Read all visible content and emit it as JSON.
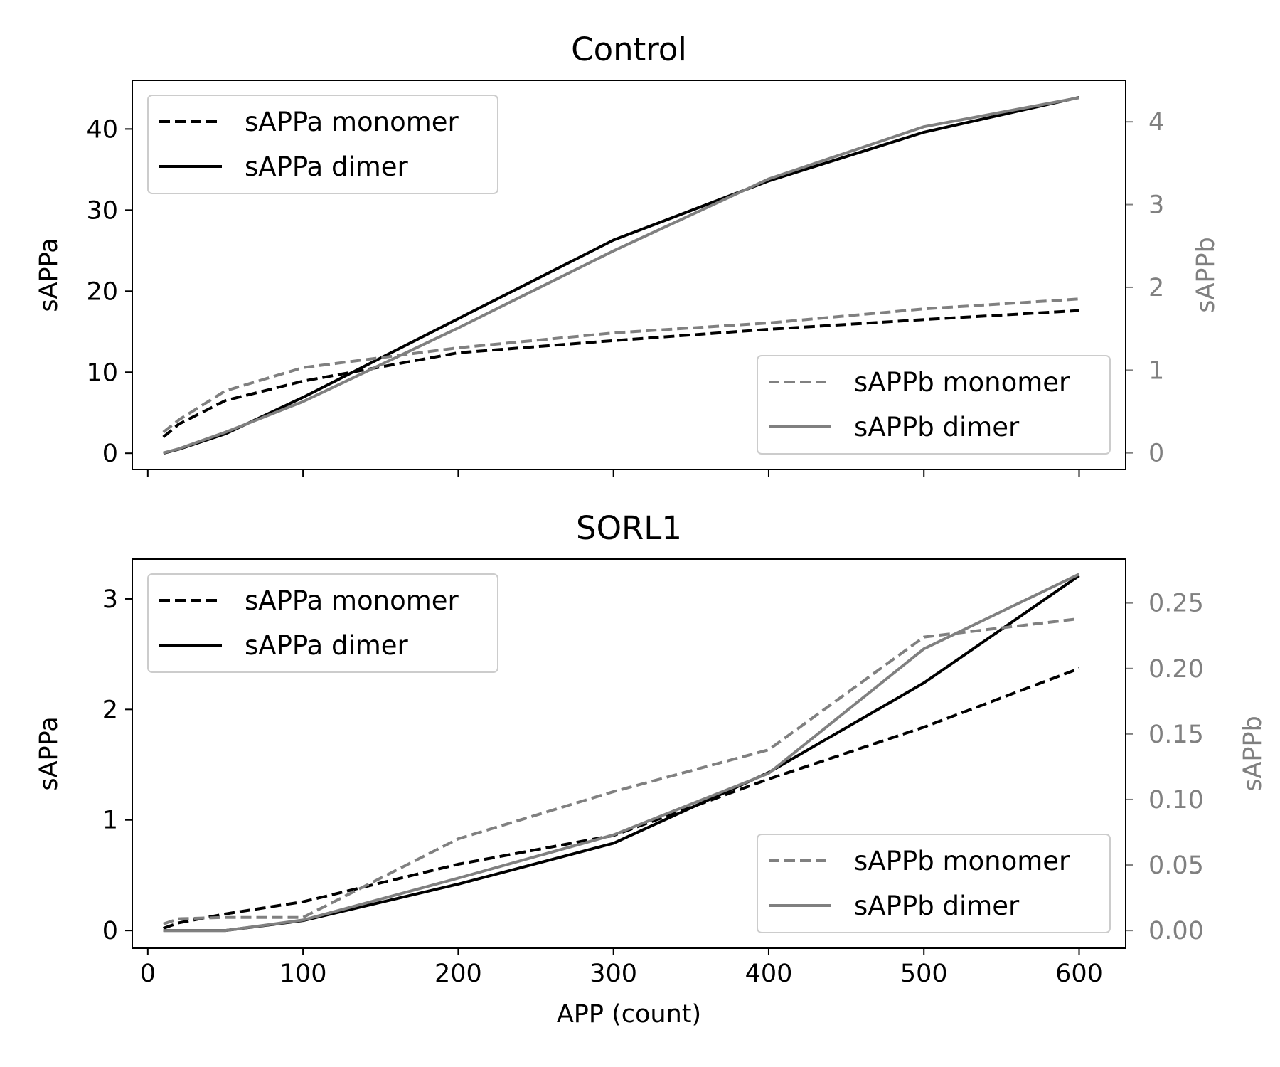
{
  "colors": {
    "black": "#000000",
    "gray": "#808080",
    "legend_border": "#cccccc"
  },
  "chart_data": [
    {
      "type": "line",
      "title": "Control",
      "xlabel": "",
      "ylabel": "sAPPa",
      "ylabel_right": "sAPPb",
      "xlim": [
        -10,
        630
      ],
      "ylim": [
        -2,
        46
      ],
      "ylim_right": [
        -0.2,
        4.5
      ],
      "xticks": [
        0,
        100,
        200,
        300,
        400,
        500,
        600
      ],
      "yticks": [
        0,
        10,
        20,
        30,
        40
      ],
      "yticks_right": [
        0,
        1,
        2,
        3,
        4
      ],
      "grid": false,
      "x": [
        10,
        20,
        50,
        100,
        200,
        300,
        400,
        500,
        600
      ],
      "series": [
        {
          "name": "sAPPa monomer",
          "axis": "left",
          "color": "#000000",
          "style": "dashed",
          "values": [
            2.0,
            3.6,
            6.5,
            8.9,
            12.4,
            13.9,
            15.3,
            16.5,
            17.6
          ]
        },
        {
          "name": "sAPPa dimer",
          "axis": "left",
          "color": "#000000",
          "style": "solid",
          "values": [
            0.0,
            0.5,
            2.4,
            6.9,
            16.6,
            26.3,
            33.6,
            39.6,
            43.9
          ]
        },
        {
          "name": "sAPPb monomer",
          "axis": "right",
          "color": "#808080",
          "style": "dashed",
          "values": [
            0.25,
            0.4,
            0.75,
            1.03,
            1.27,
            1.45,
            1.57,
            1.74,
            1.86
          ]
        },
        {
          "name": "sAPPb dimer",
          "axis": "right",
          "color": "#808080",
          "style": "solid",
          "values": [
            0.0,
            0.05,
            0.25,
            0.62,
            1.51,
            2.44,
            3.31,
            3.94,
            4.29
          ]
        }
      ],
      "legends": [
        {
          "position": "upper left",
          "entries": [
            "sAPPa monomer",
            "sAPPa dimer"
          ]
        },
        {
          "position": "lower right",
          "entries": [
            "sAPPb monomer",
            "sAPPb dimer"
          ]
        }
      ]
    },
    {
      "type": "line",
      "title": "SORL1",
      "xlabel": "APP (count)",
      "ylabel": "sAPPa",
      "ylabel_right": "sAPPb",
      "xlim": [
        -10,
        630
      ],
      "ylim": [
        -0.16,
        3.36
      ],
      "ylim_right": [
        -0.0135,
        0.2835
      ],
      "xticks": [
        0,
        100,
        200,
        300,
        400,
        500,
        600
      ],
      "yticks": [
        0,
        1,
        2,
        3
      ],
      "yticks_right": [
        0.0,
        0.05,
        0.1,
        0.15,
        0.2,
        0.25
      ],
      "yticks_right_labels": [
        "0.00",
        "0.05",
        "0.10",
        "0.15",
        "0.20",
        "0.25"
      ],
      "grid": false,
      "x": [
        10,
        20,
        50,
        100,
        200,
        300,
        400,
        500,
        600
      ],
      "series": [
        {
          "name": "sAPPa monomer",
          "axis": "left",
          "color": "#000000",
          "style": "dashed",
          "values": [
            0.02,
            0.07,
            0.15,
            0.26,
            0.6,
            0.86,
            1.37,
            1.84,
            2.37
          ]
        },
        {
          "name": "sAPPa dimer",
          "axis": "left",
          "color": "#000000",
          "style": "solid",
          "values": [
            0.0,
            0.0,
            0.0,
            0.09,
            0.42,
            0.79,
            1.43,
            2.24,
            3.21
          ]
        },
        {
          "name": "sAPPb monomer",
          "axis": "right",
          "color": "#808080",
          "style": "dashed",
          "values": [
            0.005,
            0.009,
            0.01,
            0.01,
            0.07,
            0.106,
            0.138,
            0.224,
            0.238
          ]
        },
        {
          "name": "sAPPb dimer",
          "axis": "right",
          "color": "#808080",
          "style": "solid",
          "values": [
            0.0,
            0.0,
            0.0,
            0.008,
            0.04,
            0.073,
            0.12,
            0.215,
            0.272
          ]
        }
      ],
      "legends": [
        {
          "position": "upper left",
          "entries": [
            "sAPPa monomer",
            "sAPPa dimer"
          ]
        },
        {
          "position": "lower right",
          "entries": [
            "sAPPb monomer",
            "sAPPb dimer"
          ]
        }
      ]
    }
  ]
}
